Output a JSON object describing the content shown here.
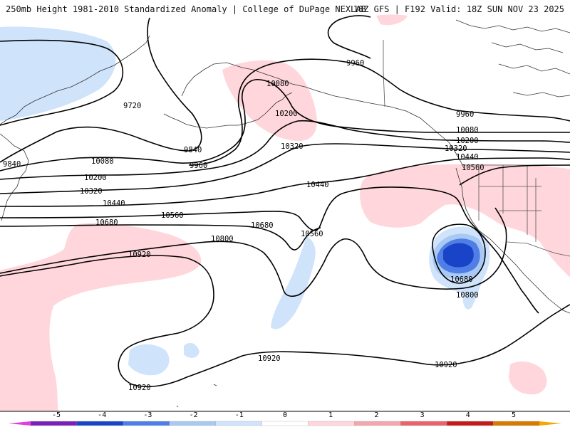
{
  "header": {
    "title": "250mb Height 1981-2010 Standardized Anomaly | College of DuPage NEXLAB",
    "valid": "18Z GFS | F192 Valid: 18Z SUN NOV 23 2025"
  },
  "contour_labels": [
    "9720",
    "9840",
    "9840",
    "9960",
    "9960",
    "9960",
    "10080",
    "10080",
    "10080",
    "10200",
    "10200",
    "10200",
    "10320",
    "10320",
    "10320",
    "10440",
    "10440",
    "10440",
    "10560",
    "10560",
    "10560",
    "10680",
    "10680",
    "10680",
    "10800",
    "10800",
    "10920",
    "10920",
    "10920",
    "10920"
  ],
  "colorbar": {
    "ticks": [
      "-5",
      "-4",
      "-3",
      "-2",
      "-1",
      "0",
      "1",
      "2",
      "3",
      "4",
      "5"
    ],
    "colors": [
      "#e040e0",
      "#7a1fb8",
      "#1a44c8",
      "#4f7fe6",
      "#a9c8f4",
      "#cfe3fb",
      "#ffffff",
      "#ffd6dc",
      "#f4a6ae",
      "#e8636b",
      "#c41a1a",
      "#d77a00",
      "#f4a800"
    ]
  }
}
